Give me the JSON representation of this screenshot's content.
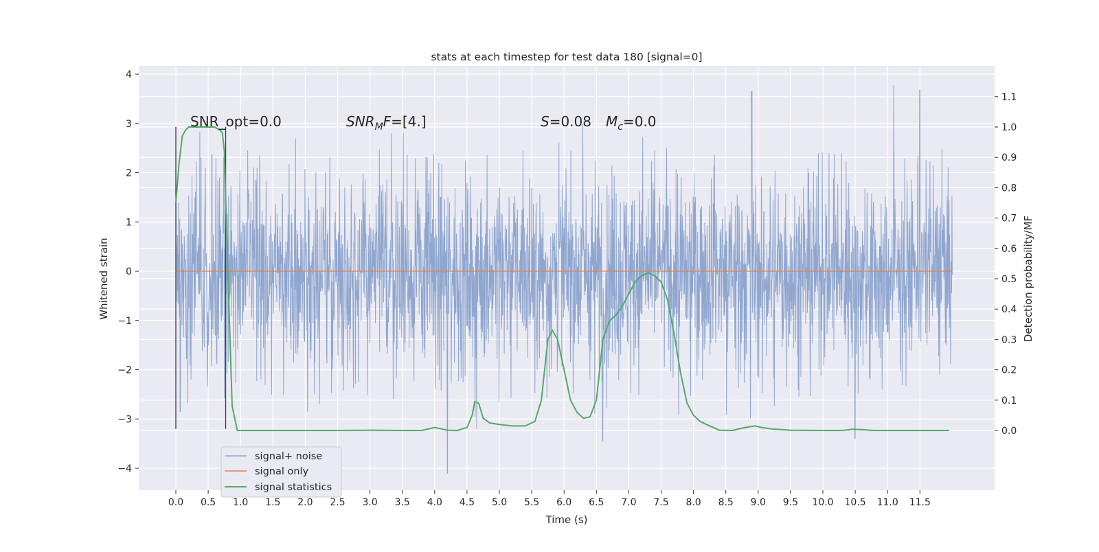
{
  "chart_data": {
    "type": "line",
    "title": "stats at each timestep for test data 180 [signal=0]",
    "xlabel": "Time (s)",
    "ylabel": "Whitened strain",
    "ylabel_right": "Detection probability/MF",
    "xlim": [
      -0.58,
      12.6
    ],
    "ylim": [
      -4.45,
      4.12
    ],
    "ylim_right": [
      -0.2,
      1.2
    ],
    "x_ticks": [
      "0.0",
      "0.5",
      "1.0",
      "1.5",
      "2.0",
      "2.5",
      "3.0",
      "3.5",
      "4.0",
      "4.5",
      "5.0",
      "5.5",
      "6.0",
      "6.5",
      "7.0",
      "7.5",
      "8.0",
      "8.5",
      "9.0",
      "9.5",
      "10.0",
      "10.5",
      "11.0",
      "11.5"
    ],
    "y_ticks": [
      "4",
      "3",
      "2",
      "1",
      "0",
      "−1",
      "−2",
      "−3",
      "−4"
    ],
    "y_ticks_right": [
      "1.1",
      "1.0",
      "0.9",
      "0.8",
      "0.7",
      "0.6",
      "0.5",
      "0.4",
      "0.3",
      "0.2",
      "0.1",
      "0.0"
    ],
    "grid": true,
    "legend_position": "bottom-left",
    "annotations": {
      "snr_opt": "SNR_opt=0.0",
      "snr_mf_base": "SNR",
      "snr_mf_sub": "M",
      "snr_mf_rest": "F=[4.]",
      "s_label": "S",
      "s_value": "=0.08",
      "mc_label": "M",
      "mc_sub": "c",
      "mc_value": "=0.0"
    },
    "vertical_lines_x": [
      0.0,
      0.77
    ],
    "series": [
      {
        "name": "signal+ noise",
        "color": "#8fa6cf",
        "axis": "left",
        "x_range": [
          0.0,
          12.0
        ],
        "typical_range": [
          -2.0,
          2.4
        ],
        "peak_values": [
          [
            4.2,
            3.35
          ],
          [
            4.65,
            2.95
          ],
          [
            8.9,
            3.65
          ],
          [
            11.1,
            3.78
          ],
          [
            11.5,
            3.68
          ],
          [
            4.2,
            -4.1
          ],
          [
            4.65,
            -3.2
          ],
          [
            6.6,
            -3.45
          ],
          [
            10.5,
            -3.4
          ],
          [
            0.07,
            -2.85
          ]
        ]
      },
      {
        "name": "signal only",
        "color": "#dd8452",
        "axis": "left",
        "x": [
          0.0,
          12.0
        ],
        "y": [
          0.0,
          0.0
        ]
      },
      {
        "name": "signal statistics",
        "color": "#55a868",
        "axis": "right",
        "x": [
          0.0,
          0.05,
          0.1,
          0.15,
          0.2,
          0.3,
          0.45,
          0.6,
          0.68,
          0.72,
          0.75,
          0.8,
          0.87,
          0.95,
          1.1,
          1.5,
          2.0,
          2.5,
          3.0,
          3.5,
          3.8,
          4.0,
          4.2,
          4.35,
          4.5,
          4.58,
          4.62,
          4.68,
          4.75,
          4.85,
          5.0,
          5.2,
          5.4,
          5.55,
          5.65,
          5.75,
          5.82,
          5.9,
          6.0,
          6.1,
          6.2,
          6.3,
          6.4,
          6.5,
          6.6,
          6.7,
          6.8,
          6.9,
          7.0,
          7.1,
          7.2,
          7.3,
          7.4,
          7.5,
          7.6,
          7.7,
          7.8,
          7.9,
          8.0,
          8.1,
          8.2,
          8.4,
          8.6,
          8.8,
          8.95,
          9.05,
          9.2,
          9.5,
          10.0,
          10.3,
          10.45,
          10.6,
          10.8,
          11.0,
          11.5,
          11.95
        ],
        "y": [
          0.75,
          0.88,
          0.97,
          0.99,
          1.0,
          1.0,
          1.0,
          1.0,
          0.99,
          0.98,
          0.92,
          0.55,
          0.08,
          0.0,
          0.0,
          0.0,
          0.0,
          0.0,
          0.001,
          0.0,
          0.0,
          0.01,
          0.001,
          0.0,
          0.01,
          0.05,
          0.095,
          0.09,
          0.04,
          0.025,
          0.02,
          0.015,
          0.015,
          0.03,
          0.1,
          0.3,
          0.33,
          0.3,
          0.2,
          0.1,
          0.06,
          0.04,
          0.045,
          0.1,
          0.3,
          0.36,
          0.38,
          0.41,
          0.45,
          0.49,
          0.51,
          0.52,
          0.51,
          0.49,
          0.43,
          0.32,
          0.19,
          0.09,
          0.05,
          0.03,
          0.02,
          0.001,
          0.0,
          0.01,
          0.015,
          0.01,
          0.005,
          0.001,
          0.0,
          0.0,
          0.004,
          0.003,
          0.0,
          0.0,
          0.0,
          0.0
        ]
      }
    ]
  }
}
